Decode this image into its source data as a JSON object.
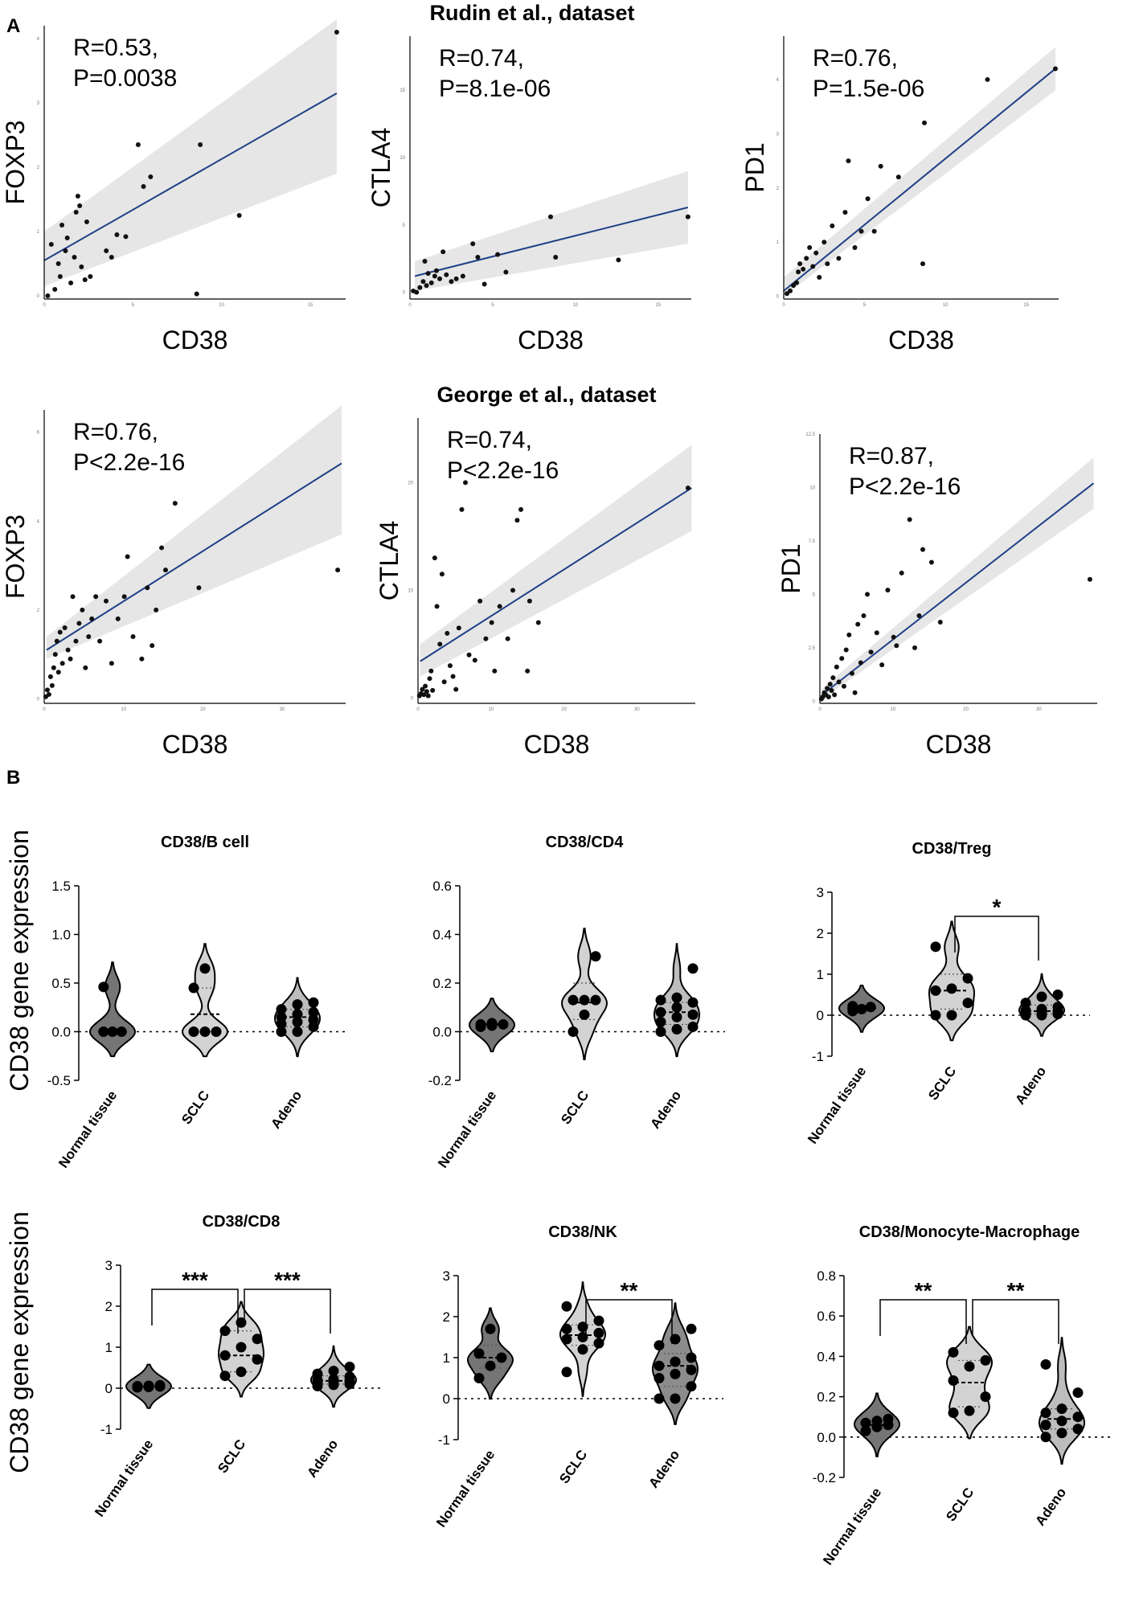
{
  "figure": {
    "panel_a_label": "A",
    "panel_b_label": "B",
    "dataset_rudin": "Rudin et al., dataset",
    "dataset_george": "George et al., dataset",
    "y_axis_label_b": "CD38 gene  expression"
  },
  "chart_data": [
    {
      "id": "rudin-foxp3",
      "type": "scatter",
      "dataset": "Rudin et al., dataset",
      "xlabel": "CD38",
      "ylabel": "FOXP3",
      "stat_line1": "R=0.53,",
      "stat_line2": "P=0.0038",
      "xlim": [
        0,
        17
      ],
      "ylim": [
        -0.05,
        4.2
      ],
      "x_ticks": [
        0,
        5,
        10,
        15
      ],
      "y_ticks": [
        0,
        1,
        2,
        3,
        4
      ],
      "regression": {
        "x": [
          0,
          16.5
        ],
        "y": [
          0.55,
          3.15
        ],
        "ci_low": [
          0.15,
          1.9
        ],
        "ci_high": [
          1.0,
          4.3
        ]
      },
      "x": [
        0.2,
        0.4,
        0.6,
        0.8,
        0.9,
        1.0,
        1.2,
        1.3,
        1.5,
        1.7,
        1.8,
        1.9,
        2.0,
        2.1,
        2.3,
        2.4,
        2.6,
        3.5,
        3.8,
        4.1,
        4.6,
        5.3,
        5.6,
        6.0,
        8.8,
        8.6,
        11.0,
        16.5
      ],
      "y": [
        0.0,
        0.8,
        0.1,
        0.5,
        0.3,
        1.1,
        0.7,
        0.9,
        0.2,
        0.6,
        1.3,
        1.55,
        1.4,
        0.45,
        0.25,
        1.15,
        0.3,
        0.7,
        0.6,
        0.95,
        0.92,
        2.35,
        1.7,
        1.85,
        2.35,
        0.03,
        1.25,
        4.1
      ]
    },
    {
      "id": "rudin-ctla4",
      "type": "scatter",
      "dataset": "Rudin et al., dataset",
      "xlabel": "CD38",
      "ylabel": "CTLA4",
      "stat_line1": "R=0.74,",
      "stat_line2": "P=8.1e-06",
      "xlim": [
        0,
        17
      ],
      "ylim": [
        -0.5,
        19
      ],
      "x_ticks": [
        0,
        5,
        10,
        15
      ],
      "y_ticks": [
        0,
        5,
        10,
        15
      ],
      "regression": {
        "x": [
          0.3,
          16.8
        ],
        "y": [
          1.2,
          6.3
        ],
        "ci_low": [
          0.1,
          3.6
        ],
        "ci_high": [
          2.3,
          9.0
        ]
      },
      "x": [
        0.2,
        0.4,
        0.6,
        0.8,
        0.9,
        1.0,
        1.1,
        1.3,
        1.5,
        1.6,
        1.8,
        2.0,
        2.2,
        2.5,
        2.8,
        3.2,
        3.8,
        4.1,
        4.5,
        5.3,
        5.8,
        8.5,
        8.8,
        12.6,
        16.8
      ],
      "y": [
        0.1,
        0.0,
        0.35,
        0.8,
        2.3,
        0.5,
        1.4,
        0.7,
        1.2,
        1.6,
        1.0,
        3.0,
        1.3,
        0.8,
        1.0,
        1.2,
        3.6,
        2.6,
        0.6,
        2.8,
        1.5,
        5.6,
        2.6,
        2.4,
        5.6
      ]
    },
    {
      "id": "rudin-pd1",
      "type": "scatter",
      "dataset": "Rudin et al., dataset",
      "xlabel": "CD38",
      "ylabel": "PD1",
      "stat_line1": "R=0.76,",
      "stat_line2": "P=1.5e-06",
      "xlim": [
        0,
        17
      ],
      "ylim": [
        -0.05,
        4.8
      ],
      "x_ticks": [
        0,
        5,
        10,
        15
      ],
      "y_ticks": [
        0,
        1,
        2,
        3,
        4
      ],
      "regression": {
        "x": [
          0,
          16.8
        ],
        "y": [
          0.1,
          4.2
        ],
        "ci_low": [
          0.0,
          3.8
        ],
        "ci_high": [
          0.35,
          4.6
        ]
      },
      "x": [
        0.2,
        0.4,
        0.6,
        0.8,
        0.9,
        1.0,
        1.2,
        1.4,
        1.6,
        1.8,
        2.0,
        2.2,
        2.5,
        2.7,
        3.0,
        3.4,
        3.8,
        4.0,
        4.4,
        4.8,
        5.2,
        5.6,
        6.0,
        7.1,
        8.7,
        8.6,
        12.6,
        16.8
      ],
      "y": [
        0.05,
        0.1,
        0.2,
        0.25,
        0.45,
        0.6,
        0.5,
        0.7,
        0.9,
        0.55,
        0.8,
        0.35,
        1.0,
        0.6,
        1.3,
        0.7,
        1.55,
        2.5,
        0.9,
        1.2,
        1.8,
        1.2,
        2.4,
        2.2,
        3.2,
        0.6,
        4.0,
        4.2
      ]
    },
    {
      "id": "george-foxp3",
      "type": "scatter",
      "dataset": "George et al., dataset",
      "xlabel": "CD38",
      "ylabel": "FOXP3",
      "stat_line1": "R=0.76,",
      "stat_line2": "P<2.2e-16",
      "xlim": [
        0,
        38
      ],
      "ylim": [
        -0.1,
        6.5
      ],
      "x_ticks": [
        0,
        10,
        20,
        30
      ],
      "y_ticks": [
        0,
        2,
        4,
        6
      ],
      "regression": {
        "x": [
          0.3,
          37.5
        ],
        "y": [
          1.1,
          5.3
        ],
        "ci_low": [
          0.9,
          3.7
        ],
        "ci_high": [
          1.4,
          6.6
        ]
      },
      "x": [
        0.2,
        0.4,
        0.6,
        0.8,
        1.0,
        1.2,
        1.4,
        1.6,
        1.8,
        2.0,
        2.3,
        2.6,
        3.0,
        3.3,
        3.6,
        4.0,
        4.4,
        4.8,
        5.2,
        5.6,
        6.0,
        6.5,
        7.0,
        7.8,
        8.5,
        9.3,
        10.1,
        10.5,
        11.2,
        12.3,
        13.0,
        13.6,
        14.1,
        14.8,
        15.3,
        16.5,
        19.5,
        37.0
      ],
      "y": [
        0.05,
        0.2,
        0.1,
        0.5,
        0.3,
        0.7,
        1.0,
        1.3,
        0.6,
        1.5,
        0.8,
        1.6,
        1.1,
        0.9,
        2.3,
        1.3,
        1.7,
        2.0,
        0.7,
        1.4,
        1.8,
        2.3,
        1.3,
        2.2,
        0.8,
        1.8,
        2.3,
        3.2,
        1.4,
        0.9,
        2.5,
        1.2,
        2.0,
        3.4,
        2.9,
        4.4,
        2.5,
        2.9
      ]
    },
    {
      "id": "george-ctla4",
      "type": "scatter",
      "dataset": "George et al., dataset",
      "xlabel": "CD38",
      "ylabel": "CTLA4",
      "stat_line1": "R=0.74,",
      "stat_line2": "P<2.2e-16",
      "xlim": [
        0,
        38
      ],
      "ylim": [
        -0.5,
        26
      ],
      "x_ticks": [
        0,
        10,
        20,
        30
      ],
      "y_ticks": [
        0,
        10,
        20
      ],
      "regression": {
        "x": [
          0.3,
          37.5
        ],
        "y": [
          3.4,
          19.5
        ],
        "ci_low": [
          2.0,
          15.5
        ],
        "ci_high": [
          5.0,
          23.5
        ]
      },
      "x": [
        0.2,
        0.4,
        0.6,
        0.8,
        1.0,
        1.2,
        1.4,
        1.6,
        1.8,
        2.0,
        2.3,
        2.6,
        3.0,
        3.3,
        3.6,
        4.0,
        4.4,
        4.8,
        5.2,
        5.6,
        6.0,
        6.5,
        7.0,
        7.8,
        8.5,
        9.3,
        10.1,
        10.5,
        11.2,
        12.3,
        13.0,
        13.6,
        14.1,
        15.3,
        15.0,
        16.5,
        37.0
      ],
      "y": [
        0.2,
        0.4,
        0.8,
        0.3,
        1.1,
        0.6,
        0.2,
        1.8,
        2.5,
        0.7,
        13.0,
        8.5,
        5.0,
        11.5,
        1.5,
        6.0,
        3.0,
        2.0,
        0.8,
        6.5,
        17.5,
        20.0,
        4.0,
        3.5,
        9.0,
        5.5,
        7.0,
        2.5,
        8.5,
        5.5,
        10.0,
        16.5,
        17.5,
        9.0,
        2.5,
        7.0,
        19.5
      ]
    },
    {
      "id": "george-pd1",
      "type": "scatter",
      "dataset": "George et al., dataset",
      "xlabel": "CD38",
      "ylabel": "PD1",
      "stat_line1": "R=0.87,",
      "stat_line2": "P<2.2e-16",
      "xlim": [
        0,
        38
      ],
      "ylim": [
        -0.1,
        12.5
      ],
      "x_ticks": [
        0,
        10,
        20,
        30
      ],
      "y_ticks": [
        0.0,
        2.5,
        5.0,
        7.5,
        10.0,
        12.5
      ],
      "regression": {
        "x": [
          0.3,
          37.5
        ],
        "y": [
          0.3,
          10.2
        ],
        "ci_low": [
          0.1,
          9.0
        ],
        "ci_high": [
          0.6,
          11.4
        ]
      },
      "x": [
        0.2,
        0.4,
        0.6,
        0.8,
        1.0,
        1.2,
        1.4,
        1.6,
        1.8,
        2.0,
        2.3,
        2.6,
        3.0,
        3.3,
        3.6,
        4.0,
        4.4,
        4.8,
        5.2,
        5.6,
        6.0,
        6.5,
        7.0,
        7.8,
        8.5,
        9.3,
        10.1,
        10.5,
        11.2,
        12.3,
        13.0,
        13.6,
        14.1,
        15.3,
        16.5,
        37.0
      ],
      "y": [
        0.1,
        0.2,
        0.4,
        0.3,
        0.6,
        0.2,
        0.8,
        0.5,
        1.1,
        0.3,
        1.6,
        0.9,
        2.0,
        0.7,
        2.4,
        3.1,
        1.3,
        0.4,
        3.6,
        1.8,
        4.0,
        5.0,
        2.3,
        3.2,
        1.7,
        5.2,
        3.0,
        2.6,
        6.0,
        8.5,
        2.5,
        4.0,
        7.1,
        6.5,
        3.7,
        5.7
      ]
    },
    {
      "id": "violin-bcell",
      "type": "violin",
      "title": "CD38/B cell",
      "categories": [
        "Normal tissue",
        "SCLC",
        "Adeno"
      ],
      "ylim": [
        -0.5,
        1.5
      ],
      "y_ticks": [
        -0.5,
        0.0,
        0.5,
        1.0,
        1.5
      ],
      "y_tick_labels": [
        "-0.5",
        "0.0",
        "0.5",
        "1.0",
        "1.5"
      ],
      "series": [
        {
          "name": "Normal tissue",
          "color": "#757575",
          "points": [
            0.0,
            0.0,
            0.0,
            0.46
          ],
          "median": 0.0,
          "q1": 0.0,
          "q3": 0.0
        },
        {
          "name": "SCLC",
          "color": "#d3d3d3",
          "points": [
            0.0,
            0.0,
            0.0,
            0.45,
            0.65
          ],
          "median": 0.18,
          "q1": 0.0,
          "q3": 0.45
        },
        {
          "name": "Adeno",
          "color": "#bdbdbd",
          "points": [
            0.0,
            0.0,
            0.05,
            0.08,
            0.1,
            0.12,
            0.15,
            0.18,
            0.2,
            0.23,
            0.28,
            0.3
          ],
          "median": 0.15,
          "q1": 0.05,
          "q3": 0.23
        }
      ],
      "significance": []
    },
    {
      "id": "violin-cd4",
      "type": "violin",
      "title": "CD38/CD4",
      "categories": [
        "Normal tissue",
        "SCLC",
        "Adeno"
      ],
      "ylim": [
        -0.2,
        0.6
      ],
      "y_ticks": [
        -0.2,
        0.0,
        0.2,
        0.4,
        0.6
      ],
      "y_tick_labels": [
        "-0.2",
        "0.0",
        "0.2",
        "0.4",
        "0.6"
      ],
      "series": [
        {
          "name": "Normal tissue",
          "color": "#757575",
          "points": [
            0.02,
            0.025,
            0.03,
            0.03,
            0.035
          ],
          "median": 0.03,
          "q1": 0.025,
          "q3": 0.035
        },
        {
          "name": "SCLC",
          "color": "#d3d3d3",
          "points": [
            0.0,
            0.07,
            0.13,
            0.13,
            0.13,
            0.31
          ],
          "median": 0.12,
          "q1": 0.05,
          "q3": 0.2
        },
        {
          "name": "Adeno",
          "color": "#bdbdbd",
          "points": [
            0.0,
            0.01,
            0.02,
            0.04,
            0.06,
            0.07,
            0.08,
            0.1,
            0.12,
            0.13,
            0.14,
            0.26
          ],
          "median": 0.08,
          "q1": 0.03,
          "q3": 0.12
        }
      ],
      "significance": []
    },
    {
      "id": "violin-treg",
      "type": "violin",
      "title": "CD38/Treg",
      "categories": [
        "Normal tissue",
        "SCLC",
        "Adeno"
      ],
      "ylim": [
        -1,
        3
      ],
      "y_ticks": [
        -1,
        0,
        1,
        2,
        3
      ],
      "y_tick_labels": [
        "-1",
        "0",
        "1",
        "2",
        "3"
      ],
      "series": [
        {
          "name": "Normal tissue",
          "color": "#757575",
          "points": [
            0.1,
            0.15,
            0.2,
            0.22
          ],
          "median": 0.17,
          "q1": 0.1,
          "q3": 0.22
        },
        {
          "name": "SCLC",
          "color": "#d3d3d3",
          "points": [
            0.0,
            0.0,
            0.3,
            0.6,
            0.65,
            0.9,
            1.67
          ],
          "median": 0.6,
          "q1": 0.15,
          "q3": 1.0
        },
        {
          "name": "Adeno",
          "color": "#bdbdbd",
          "points": [
            0.0,
            0.0,
            0.03,
            0.05,
            0.08,
            0.1,
            0.12,
            0.15,
            0.2,
            0.3,
            0.45,
            0.5
          ],
          "median": 0.1,
          "q1": 0.03,
          "q3": 0.25
        }
      ],
      "significance": [
        {
          "from": 1,
          "to": 2,
          "label": "*"
        }
      ]
    },
    {
      "id": "violin-cd8",
      "type": "violin",
      "title": "CD38/CD8",
      "categories": [
        "Normal tissue",
        "SCLC",
        "Adeno"
      ],
      "ylim": [
        -1,
        3
      ],
      "y_ticks": [
        -1,
        0,
        1,
        2,
        3
      ],
      "y_tick_labels": [
        "-1",
        "0",
        "1",
        "2",
        "3"
      ],
      "series": [
        {
          "name": "Normal tissue",
          "color": "#757575",
          "points": [
            0.02,
            0.03,
            0.04,
            0.05,
            0.06,
            0.07
          ],
          "median": 0.04,
          "q1": 0.03,
          "q3": 0.06
        },
        {
          "name": "SCLC",
          "color": "#d3d3d3",
          "points": [
            0.3,
            0.4,
            0.7,
            0.8,
            1.0,
            1.2,
            1.4,
            1.6
          ],
          "median": 0.8,
          "q1": 0.4,
          "q3": 1.4
        },
        {
          "name": "Adeno",
          "color": "#bdbdbd",
          "points": [
            0.05,
            0.08,
            0.1,
            0.12,
            0.15,
            0.18,
            0.2,
            0.22,
            0.28,
            0.35,
            0.42,
            0.52
          ],
          "median": 0.18,
          "q1": 0.1,
          "q3": 0.3
        }
      ],
      "significance": [
        {
          "from": 0,
          "to": 1,
          "label": "***"
        },
        {
          "from": 1,
          "to": 2,
          "label": "***"
        }
      ]
    },
    {
      "id": "violin-nk",
      "type": "violin",
      "title": "CD38/NK",
      "categories": [
        "Normal tissue",
        "SCLC",
        "Adeno"
      ],
      "ylim": [
        -1,
        3
      ],
      "y_ticks": [
        -1,
        0,
        1,
        2,
        3
      ],
      "y_tick_labels": [
        "-1",
        "0",
        "1",
        "2",
        "3"
      ],
      "series": [
        {
          "name": "Normal tissue",
          "color": "#757575",
          "points": [
            0.5,
            0.8,
            1.0,
            1.1,
            1.7
          ],
          "median": 1.0,
          "q1": 0.75,
          "q3": 1.3
        },
        {
          "name": "SCLC",
          "color": "#d3d3d3",
          "points": [
            0.65,
            1.2,
            1.35,
            1.45,
            1.5,
            1.6,
            1.7,
            1.75,
            1.9,
            2.25
          ],
          "median": 1.55,
          "q1": 1.3,
          "q3": 1.8
        },
        {
          "name": "Adeno",
          "color": "#8c8c8c",
          "points": [
            0.0,
            0.0,
            0.3,
            0.5,
            0.6,
            0.7,
            0.8,
            0.9,
            1.0,
            1.3,
            1.45,
            1.7
          ],
          "median": 0.8,
          "q1": 0.3,
          "q3": 1.1
        }
      ],
      "significance": [
        {
          "from": 1,
          "to": 2,
          "label": "**"
        }
      ]
    },
    {
      "id": "violin-mono",
      "type": "violin",
      "title": "CD38/Monocyte-Macrophage",
      "categories": [
        "Normal tissue",
        "SCLC",
        "Adeno"
      ],
      "ylim": [
        -0.2,
        0.8
      ],
      "y_ticks": [
        -0.2,
        0.0,
        0.2,
        0.4,
        0.6,
        0.8
      ],
      "y_tick_labels": [
        "-0.2",
        "0.0",
        "0.2",
        "0.4",
        "0.6",
        "0.8"
      ],
      "series": [
        {
          "name": "Normal tissue",
          "color": "#757575",
          "points": [
            0.03,
            0.05,
            0.06,
            0.07,
            0.08,
            0.09
          ],
          "median": 0.06,
          "q1": 0.04,
          "q3": 0.08
        },
        {
          "name": "SCLC",
          "color": "#d3d3d3",
          "points": [
            0.12,
            0.13,
            0.2,
            0.28,
            0.35,
            0.38,
            0.42
          ],
          "median": 0.27,
          "q1": 0.15,
          "q3": 0.38
        },
        {
          "name": "Adeno",
          "color": "#bdbdbd",
          "points": [
            0.0,
            0.02,
            0.04,
            0.06,
            0.08,
            0.1,
            0.12,
            0.14,
            0.22,
            0.36
          ],
          "median": 0.09,
          "q1": 0.04,
          "q3": 0.14
        }
      ],
      "significance": [
        {
          "from": 0,
          "to": 1,
          "label": "**"
        },
        {
          "from": 1,
          "to": 2,
          "label": "**"
        }
      ]
    }
  ]
}
